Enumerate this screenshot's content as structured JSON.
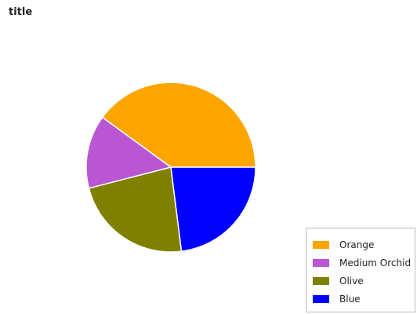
{
  "chart_data": {
    "type": "pie",
    "title": "title",
    "categories": [
      "Orange",
      "Medium Orchid",
      "Olive",
      "Blue"
    ],
    "values": [
      40,
      14,
      23,
      23
    ],
    "colors": [
      "#ffa500",
      "#ba55d3",
      "#808000",
      "#0000ff"
    ],
    "start_angle_deg": 0,
    "direction": "counterclockwise",
    "legend_position": "bottom-right"
  }
}
